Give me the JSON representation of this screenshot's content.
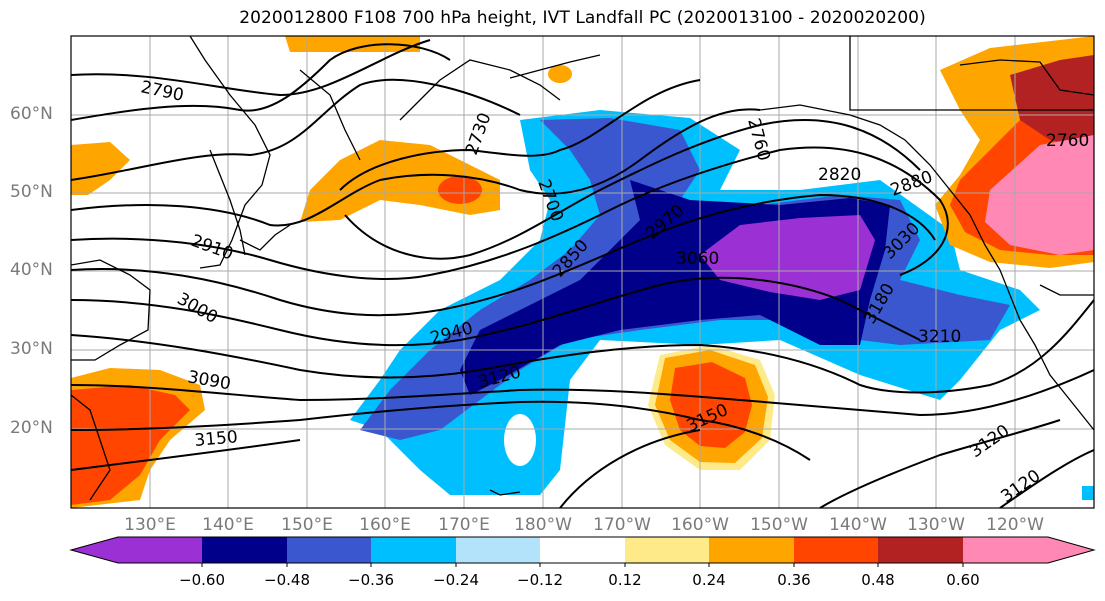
{
  "title": "2020012800 F108 700 hPa height, IVT Landfall PC (2020013100 - 2020020200)",
  "lat_labels": [
    "60°N",
    "50°N",
    "40°N",
    "30°N",
    "20°N"
  ],
  "lon_labels": [
    "130°E",
    "140°E",
    "150°E",
    "160°E",
    "170°E",
    "180°W",
    "170°W",
    "160°W",
    "150°W",
    "140°W",
    "130°W",
    "120°W"
  ],
  "contour_labels": [
    "2790",
    "2730",
    "2700",
    "2760",
    "2820",
    "2880",
    "2910",
    "3000",
    "3060",
    "2850",
    "2970",
    "2940",
    "3030",
    "3180",
    "3210",
    "2760",
    "3090",
    "3120",
    "3150",
    "3150",
    "3120",
    "3120"
  ],
  "colorbar": {
    "ticks": [
      "−0.60",
      "−0.48",
      "−0.36",
      "−0.24",
      "−0.12",
      "0.12",
      "0.24",
      "0.36",
      "0.48",
      "0.60"
    ],
    "colors": [
      "#9b30d4",
      "#00008b",
      "#3a57cf",
      "#00bfff",
      "#b3e3fb",
      "#ffffff",
      "#ffea8a",
      "#ffa500",
      "#ff4500",
      "#b22222",
      "#ff88b5"
    ]
  }
}
